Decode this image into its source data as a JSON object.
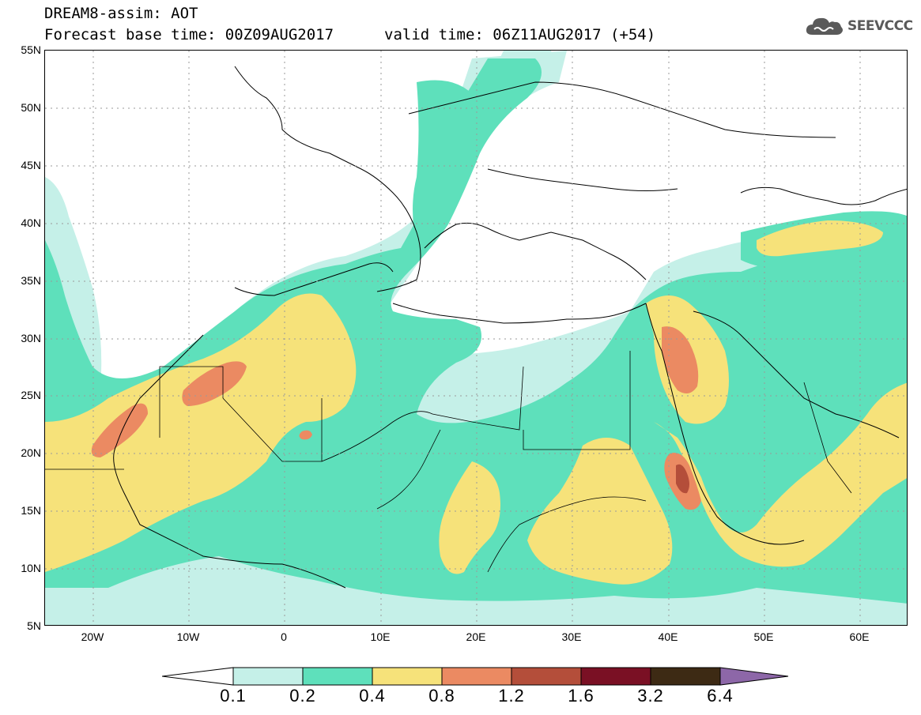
{
  "header": {
    "title": "DREAM8-assim: AOT",
    "base_time": "Forecast base time: 00Z09AUG2017",
    "valid_time": "valid time: 06Z11AUG2017 (+54)",
    "logo_text": "SEEVCCC"
  },
  "map": {
    "projection": "lat-lon",
    "lon_range": [
      -25,
      65
    ],
    "lat_range": [
      5,
      55
    ],
    "lat_labels": [
      "55N",
      "50N",
      "45N",
      "40N",
      "35N",
      "30N",
      "25N",
      "20N",
      "15N",
      "10N",
      "5N"
    ],
    "lon_labels": [
      "20W",
      "10W",
      "0",
      "10E",
      "20E",
      "30E",
      "40E",
      "50E",
      "60E"
    ]
  },
  "colorbar": {
    "labels": [
      "0.1",
      "0.2",
      "0.4",
      "0.8",
      "1.2",
      "1.6",
      "3.2",
      "6.4"
    ],
    "colors": [
      "#c5f0e8",
      "#5ee0bb",
      "#f6e27a",
      "#eb8a62",
      "#b44e3a",
      "#7a1024",
      "#3d2a14",
      "#8d67a8"
    ],
    "under_color": "#ffffff"
  }
}
